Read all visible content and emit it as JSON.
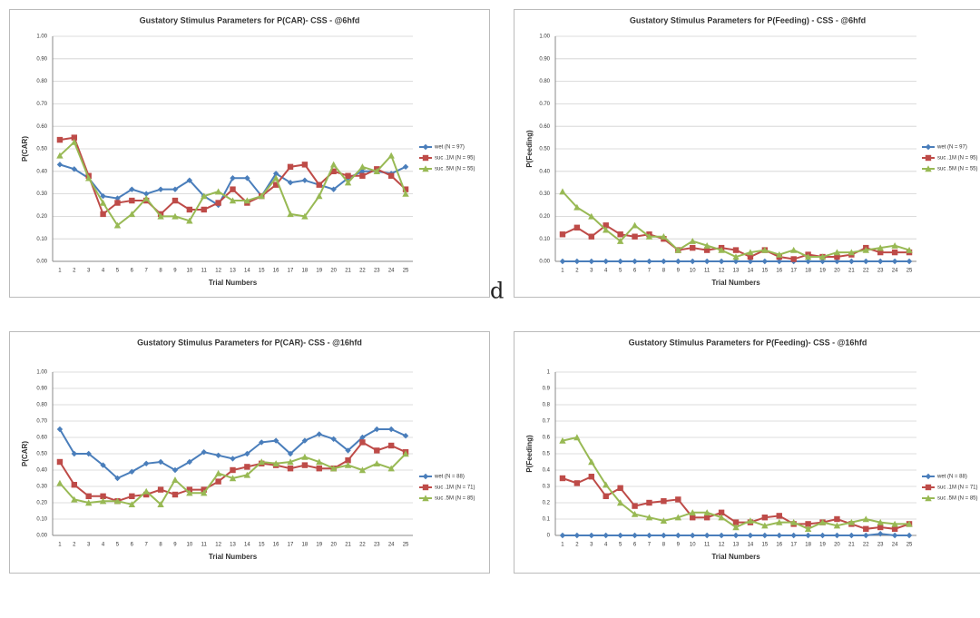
{
  "chart_data": [
    {
      "type": "line",
      "title": "Gustatory Stimulus Parameters for P(CAR)- CSS - @6hfd",
      "x_label": "Trial Numbers",
      "y_label": "P(CAR)",
      "categories": [
        1,
        2,
        3,
        4,
        5,
        6,
        7,
        8,
        9,
        10,
        11,
        12,
        13,
        14,
        15,
        16,
        17,
        18,
        19,
        20,
        21,
        22,
        23,
        24,
        25
      ],
      "ylim": [
        0,
        1
      ],
      "yticks": [
        {
          "value": 0,
          "label": "0.00"
        },
        {
          "value": 0.1,
          "label": "0.10"
        },
        {
          "value": 0.2,
          "label": "0.20"
        },
        {
          "value": 0.3,
          "label": "0.30"
        },
        {
          "value": 0.4,
          "label": "0.40"
        },
        {
          "value": 0.5,
          "label": "0.50"
        },
        {
          "value": 0.6,
          "label": "0.60"
        },
        {
          "value": 0.7,
          "label": "0.70"
        },
        {
          "value": 0.8,
          "label": "0.80"
        },
        {
          "value": 0.9,
          "label": "0.90"
        },
        {
          "value": 1,
          "label": "1.00"
        }
      ],
      "grid": true,
      "legend": "right",
      "series": [
        {
          "name": "wet (N = 97)",
          "color": "#4a7ebb",
          "marker": "diamond",
          "values": [
            0.43,
            0.41,
            0.37,
            0.29,
            0.28,
            0.32,
            0.3,
            0.32,
            0.32,
            0.36,
            0.29,
            0.25,
            0.37,
            0.37,
            0.29,
            0.39,
            0.35,
            0.36,
            0.34,
            0.32,
            0.37,
            0.4,
            0.4,
            0.39,
            0.42
          ]
        },
        {
          "name": "suc .1M (N = 95)",
          "color": "#be4b48",
          "marker": "square",
          "values": [
            0.54,
            0.55,
            0.38,
            0.21,
            0.26,
            0.27,
            0.27,
            0.21,
            0.27,
            0.23,
            0.23,
            0.26,
            0.32,
            0.26,
            0.29,
            0.34,
            0.42,
            0.43,
            0.34,
            0.4,
            0.38,
            0.38,
            0.41,
            0.38,
            0.32
          ]
        },
        {
          "name": "suc .5M (N = 55)",
          "color": "#98b954",
          "marker": "triangle",
          "values": [
            0.47,
            0.53,
            0.37,
            0.26,
            0.16,
            0.21,
            0.28,
            0.2,
            0.2,
            0.18,
            0.29,
            0.31,
            0.27,
            0.27,
            0.29,
            0.37,
            0.21,
            0.2,
            0.29,
            0.43,
            0.35,
            0.42,
            0.4,
            0.47,
            0.3
          ]
        }
      ]
    },
    {
      "type": "line",
      "title": "Gustatory Stimulus Parameters for P(Feeding) - CSS - @6hfd",
      "x_label": "Trial Numbers",
      "y_label": "P(Feeding)",
      "categories": [
        1,
        2,
        3,
        4,
        5,
        6,
        7,
        8,
        9,
        10,
        11,
        12,
        13,
        14,
        15,
        16,
        17,
        18,
        19,
        20,
        21,
        22,
        23,
        24,
        25
      ],
      "ylim": [
        0,
        1
      ],
      "yticks": [
        {
          "value": 0,
          "label": "0.00"
        },
        {
          "value": 0.1,
          "label": "0.10"
        },
        {
          "value": 0.2,
          "label": "0.20"
        },
        {
          "value": 0.3,
          "label": "0.30"
        },
        {
          "value": 0.4,
          "label": "0.40"
        },
        {
          "value": 0.5,
          "label": "0.50"
        },
        {
          "value": 0.6,
          "label": "0.60"
        },
        {
          "value": 0.7,
          "label": "0.70"
        },
        {
          "value": 0.8,
          "label": "0.80"
        },
        {
          "value": 0.9,
          "label": "0.90"
        },
        {
          "value": 1,
          "label": "1.00"
        }
      ],
      "grid": true,
      "legend": "right",
      "series": [
        {
          "name": "wet (N = 97)",
          "color": "#4a7ebb",
          "marker": "diamond",
          "values": [
            0,
            0,
            0,
            0,
            0,
            0,
            0,
            0,
            0,
            0,
            0,
            0,
            0,
            0,
            0,
            0,
            0,
            0,
            0,
            0,
            0,
            0,
            0,
            0,
            0
          ]
        },
        {
          "name": "suc .1M (N = 95)",
          "color": "#be4b48",
          "marker": "square",
          "values": [
            0.12,
            0.15,
            0.11,
            0.16,
            0.12,
            0.11,
            0.12,
            0.1,
            0.05,
            0.06,
            0.05,
            0.06,
            0.05,
            0.02,
            0.05,
            0.02,
            0.01,
            0.03,
            0.02,
            0.02,
            0.03,
            0.06,
            0.04,
            0.04,
            0.04
          ]
        },
        {
          "name": "suc .5M (N = 55)",
          "color": "#98b954",
          "marker": "triangle",
          "values": [
            0.31,
            0.24,
            0.2,
            0.14,
            0.09,
            0.16,
            0.11,
            0.11,
            0.05,
            0.09,
            0.07,
            0.05,
            0.02,
            0.04,
            0.05,
            0.03,
            0.05,
            0.02,
            0.02,
            0.04,
            0.04,
            0.05,
            0.06,
            0.07,
            0.05
          ]
        }
      ]
    },
    {
      "type": "line",
      "title": "Gustatory Stimulus Parameters for P(CAR)- CSS - @16hfd",
      "x_label": "Trial Numbers",
      "y_label": "P(CAR)",
      "categories": [
        1,
        2,
        3,
        4,
        5,
        6,
        7,
        8,
        9,
        10,
        11,
        12,
        13,
        14,
        15,
        16,
        17,
        18,
        19,
        20,
        21,
        22,
        23,
        24,
        25
      ],
      "ylim": [
        0,
        1
      ],
      "yticks": [
        {
          "value": 0,
          "label": "0.00"
        },
        {
          "value": 0.1,
          "label": "0.10"
        },
        {
          "value": 0.2,
          "label": "0.20"
        },
        {
          "value": 0.3,
          "label": "0.30"
        },
        {
          "value": 0.4,
          "label": "0.40"
        },
        {
          "value": 0.5,
          "label": "0.50"
        },
        {
          "value": 0.6,
          "label": "0.60"
        },
        {
          "value": 0.7,
          "label": "0.70"
        },
        {
          "value": 0.8,
          "label": "0.80"
        },
        {
          "value": 0.9,
          "label": "0.90"
        },
        {
          "value": 1,
          "label": "1.00"
        }
      ],
      "grid": true,
      "legend": "right",
      "series": [
        {
          "name": "wet (N = 88)",
          "color": "#4a7ebb",
          "marker": "diamond",
          "values": [
            0.65,
            0.5,
            0.5,
            0.43,
            0.35,
            0.39,
            0.44,
            0.45,
            0.4,
            0.45,
            0.51,
            0.49,
            0.47,
            0.5,
            0.57,
            0.58,
            0.5,
            0.58,
            0.62,
            0.59,
            0.52,
            0.6,
            0.65,
            0.65,
            0.61
          ]
        },
        {
          "name": "suc .1M (N = 71)",
          "color": "#be4b48",
          "marker": "square",
          "values": [
            0.45,
            0.31,
            0.24,
            0.24,
            0.21,
            0.24,
            0.25,
            0.28,
            0.25,
            0.28,
            0.28,
            0.33,
            0.4,
            0.42,
            0.44,
            0.43,
            0.41,
            0.43,
            0.41,
            0.41,
            0.46,
            0.57,
            0.52,
            0.55,
            0.51
          ]
        },
        {
          "name": "suc .5M (N = 85)",
          "color": "#98b954",
          "marker": "triangle",
          "values": [
            0.32,
            0.22,
            0.2,
            0.21,
            0.21,
            0.19,
            0.27,
            0.19,
            0.34,
            0.26,
            0.26,
            0.38,
            0.35,
            0.37,
            0.45,
            0.44,
            0.45,
            0.48,
            0.45,
            0.41,
            0.43,
            0.4,
            0.44,
            0.41,
            0.5
          ]
        }
      ]
    },
    {
      "type": "line",
      "title": "Gustatory Stimulus Parameters for P(Feeding)- CSS - @16hfd",
      "x_label": "Trial Numbers",
      "y_label": "P(Feeding)",
      "categories": [
        1,
        2,
        3,
        4,
        5,
        6,
        7,
        8,
        9,
        10,
        11,
        12,
        13,
        14,
        15,
        16,
        17,
        18,
        19,
        20,
        21,
        22,
        23,
        24,
        25
      ],
      "ylim": [
        0,
        1
      ],
      "yticks": [
        0,
        0.1,
        0.2,
        0.3,
        0.4,
        0.5,
        0.6,
        0.7,
        0.8,
        0.9,
        1
      ],
      "grid": true,
      "legend": "right",
      "series": [
        {
          "name": "wet (N = 88)",
          "color": "#4a7ebb",
          "marker": "diamond",
          "values": [
            0,
            0,
            0,
            0,
            0,
            0,
            0,
            0,
            0,
            0,
            0,
            0,
            0,
            0,
            0,
            0,
            0,
            0,
            0,
            0,
            0,
            0,
            0.01,
            0,
            0
          ]
        },
        {
          "name": "suc .1M (N = 71)",
          "color": "#be4b48",
          "marker": "square",
          "values": [
            0.35,
            0.32,
            0.36,
            0.24,
            0.29,
            0.18,
            0.2,
            0.21,
            0.22,
            0.11,
            0.11,
            0.14,
            0.08,
            0.08,
            0.11,
            0.12,
            0.07,
            0.07,
            0.08,
            0.1,
            0.07,
            0.04,
            0.05,
            0.04,
            0.07
          ]
        },
        {
          "name": "suc .5M (N = 85)",
          "color": "#98b954",
          "marker": "triangle",
          "values": [
            0.58,
            0.6,
            0.45,
            0.31,
            0.2,
            0.13,
            0.11,
            0.09,
            0.11,
            0.14,
            0.14,
            0.11,
            0.05,
            0.09,
            0.06,
            0.08,
            0.08,
            0.04,
            0.08,
            0.06,
            0.08,
            0.1,
            0.08,
            0.07,
            0.07
          ]
        }
      ]
    }
  ],
  "stray_text": "d"
}
